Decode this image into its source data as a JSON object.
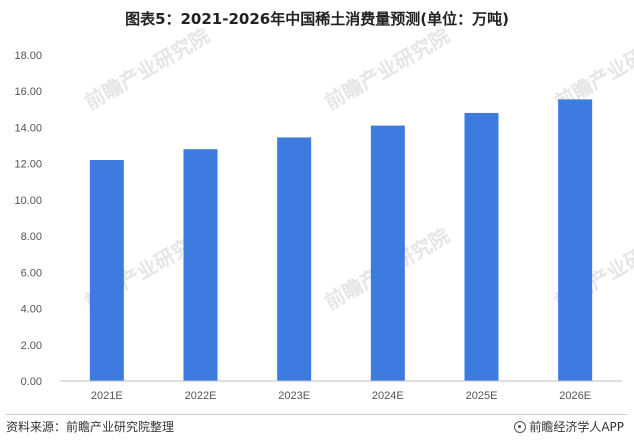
{
  "chart_data": {
    "type": "bar",
    "title": "图表5：2021-2026年中国稀土消费量预测(单位：万吨)",
    "categories": [
      "2021E",
      "2022E",
      "2023E",
      "2024E",
      "2025E",
      "2026E"
    ],
    "series": [
      {
        "values": [
          12.2,
          12.8,
          13.45,
          14.1,
          14.8,
          15.55
        ]
      }
    ],
    "ylim": [
      0,
      18
    ],
    "yticks": [
      "0.00",
      "2.00",
      "4.00",
      "6.00",
      "8.00",
      "10.00",
      "12.00",
      "14.00",
      "16.00",
      "18.00"
    ],
    "grid": false,
    "bar_color": "#3d7be0",
    "axis_color": "#bfbfbf"
  },
  "watermark": "前瞻产业研究院",
  "footer": {
    "source": "资料来源：前瞻产业研究院整理",
    "brand": "前瞻经济学人APP",
    "brand_icon": "qianzhan-logo-icon"
  }
}
